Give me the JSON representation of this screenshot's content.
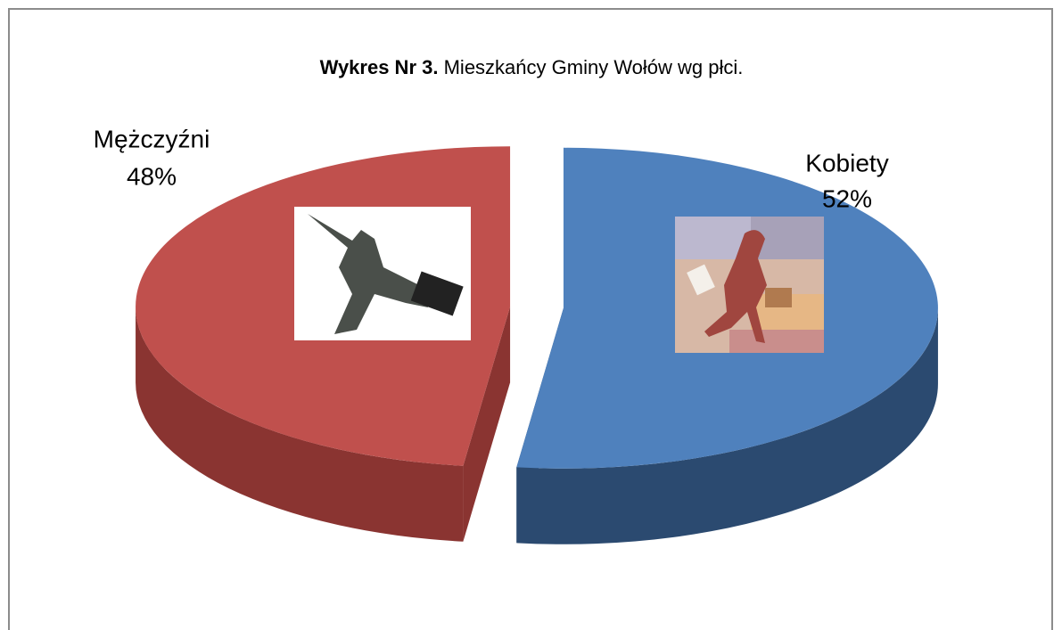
{
  "chart_data": {
    "type": "pie",
    "title": [
      "Wykres Nr 3.",
      "Mieszkańcy Gminy Wołów wg płci."
    ],
    "categories": [
      "Kobiety",
      "Mężczyźni"
    ],
    "values": [
      52,
      48
    ],
    "value_labels": [
      "52%",
      "48%"
    ],
    "colors": [
      "#4f81bd",
      "#c0504d"
    ],
    "side_colors": [
      "#2b4a70",
      "#8a3431"
    ]
  }
}
